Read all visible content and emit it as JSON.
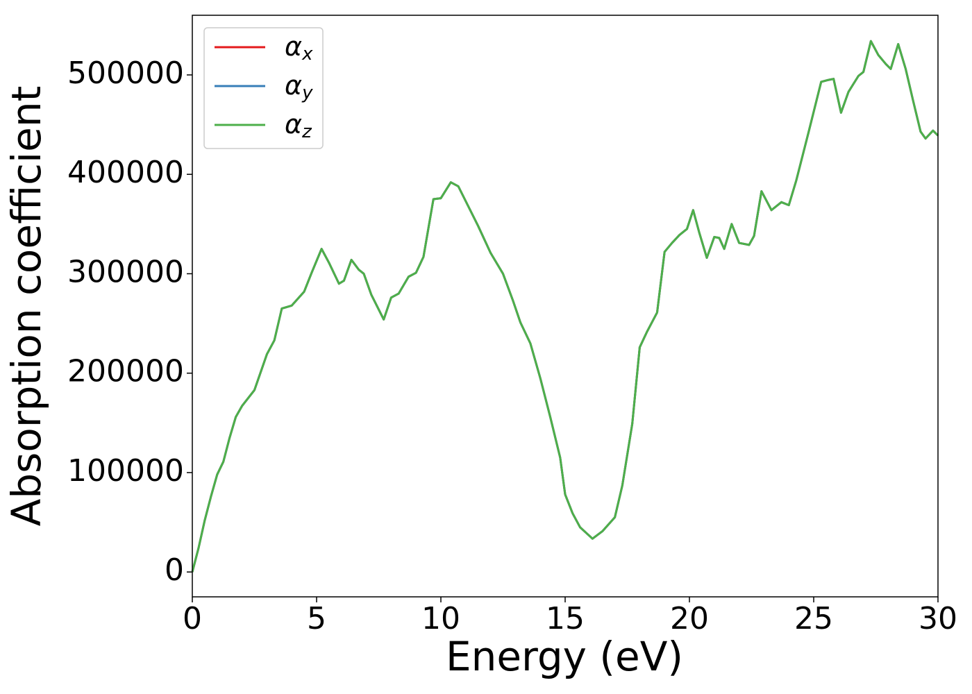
{
  "chart_data": {
    "type": "line",
    "xlabel": "Energy (eV)",
    "ylabel": "Absorption coefficient",
    "xlim": [
      0,
      30
    ],
    "xticks": [
      0,
      5,
      10,
      15,
      20,
      25,
      30
    ],
    "ylim": [
      -25000,
      560000
    ],
    "yticks": [
      0,
      100000,
      200000,
      300000,
      400000,
      500000
    ],
    "legend": "upper left",
    "x": [
      0,
      0.25,
      0.5,
      0.75,
      1.0,
      1.25,
      1.5,
      1.75,
      2.0,
      2.5,
      3.0,
      3.3,
      3.6,
      4.0,
      4.5,
      4.8,
      5.2,
      5.5,
      5.9,
      6.1,
      6.4,
      6.7,
      6.9,
      7.2,
      7.7,
      8.0,
      8.3,
      8.7,
      9.0,
      9.3,
      9.7,
      10.0,
      10.4,
      10.7,
      11.0,
      11.5,
      12.0,
      12.5,
      12.9,
      13.2,
      13.6,
      14.0,
      14.4,
      14.8,
      15.0,
      15.3,
      15.6,
      16.1,
      16.5,
      17.0,
      17.3,
      17.7,
      18.0,
      18.3,
      18.7,
      19.0,
      19.3,
      19.6,
      19.9,
      20.15,
      20.4,
      20.7,
      21.0,
      21.2,
      21.4,
      21.7,
      22.0,
      22.4,
      22.6,
      22.9,
      23.3,
      23.7,
      24.0,
      24.3,
      24.8,
      25.3,
      25.6,
      25.8,
      26.1,
      26.4,
      26.8,
      27.0,
      27.3,
      27.6,
      27.9,
      28.1,
      28.4,
      28.7,
      29.0,
      29.3,
      29.5,
      29.8,
      30.0
    ],
    "series": [
      {
        "name": "αx",
        "color": "#e41a1c",
        "values": [
          0,
          24000,
          52000,
          76000,
          98000,
          111000,
          135000,
          156000,
          167000,
          183000,
          219000,
          233000,
          265000,
          268000,
          282000,
          301000,
          325000,
          311000,
          290000,
          293000,
          314000,
          304000,
          300000,
          279000,
          254000,
          276000,
          280000,
          297000,
          301000,
          317000,
          375000,
          376000,
          392000,
          388000,
          373000,
          348000,
          321000,
          300000,
          273000,
          251000,
          230000,
          195000,
          156000,
          115000,
          78000,
          59000,
          45000,
          33500,
          41000,
          55000,
          87000,
          149000,
          226000,
          242000,
          261000,
          322000,
          331000,
          339000,
          345000,
          364000,
          341000,
          316000,
          337000,
          336000,
          325000,
          350000,
          331000,
          329000,
          338000,
          383000,
          364000,
          372000,
          369000,
          394000,
          443000,
          493000,
          495000,
          496000,
          462000,
          483000,
          499000,
          503000,
          534000,
          520000,
          511000,
          506000,
          531000,
          506000,
          474000,
          443000,
          436000,
          444000,
          439000
        ]
      },
      {
        "name": "αy",
        "color": "#377eb8",
        "values": [
          0,
          24000,
          52000,
          76000,
          98000,
          111000,
          135000,
          156000,
          167000,
          183000,
          219000,
          233000,
          265000,
          268000,
          282000,
          301000,
          325000,
          311000,
          290000,
          293000,
          314000,
          304000,
          300000,
          279000,
          254000,
          276000,
          280000,
          297000,
          301000,
          317000,
          375000,
          376000,
          392000,
          388000,
          373000,
          348000,
          321000,
          300000,
          273000,
          251000,
          230000,
          195000,
          156000,
          115000,
          78000,
          59000,
          45000,
          33500,
          41000,
          55000,
          87000,
          149000,
          226000,
          242000,
          261000,
          322000,
          331000,
          339000,
          345000,
          364000,
          341000,
          316000,
          337000,
          336000,
          325000,
          350000,
          331000,
          329000,
          338000,
          383000,
          364000,
          372000,
          369000,
          394000,
          443000,
          493000,
          495000,
          496000,
          462000,
          483000,
          499000,
          503000,
          534000,
          520000,
          511000,
          506000,
          531000,
          506000,
          474000,
          443000,
          436000,
          444000,
          439000
        ]
      },
      {
        "name": "αz",
        "color": "#4daf4a",
        "values": [
          0,
          24000,
          52000,
          76000,
          98000,
          111000,
          135000,
          156000,
          167000,
          183000,
          219000,
          233000,
          265000,
          268000,
          282000,
          301000,
          325000,
          311000,
          290000,
          293000,
          314000,
          304000,
          300000,
          279000,
          254000,
          276000,
          280000,
          297000,
          301000,
          317000,
          375000,
          376000,
          392000,
          388000,
          373000,
          348000,
          321000,
          300000,
          273000,
          251000,
          230000,
          195000,
          156000,
          115000,
          78000,
          59000,
          45000,
          33500,
          41000,
          55000,
          87000,
          149000,
          226000,
          242000,
          261000,
          322000,
          331000,
          339000,
          345000,
          364000,
          341000,
          316000,
          337000,
          336000,
          325000,
          350000,
          331000,
          329000,
          338000,
          383000,
          364000,
          372000,
          369000,
          394000,
          443000,
          493000,
          495000,
          496000,
          462000,
          483000,
          499000,
          503000,
          534000,
          520000,
          511000,
          506000,
          531000,
          506000,
          474000,
          443000,
          436000,
          444000,
          439000
        ]
      }
    ]
  }
}
